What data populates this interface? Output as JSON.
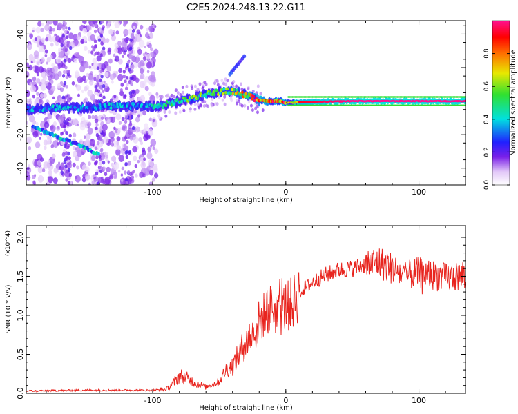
{
  "title": "C2E5.2024.248.13.22.G11",
  "chart_data": [
    {
      "type": "heatmap",
      "xlabel": "Height of straight line (km)",
      "ylabel": "Frequency (Hz)",
      "xlim": [
        -195,
        135
      ],
      "ylim": [
        -50,
        48
      ],
      "xticks": [
        -100,
        0,
        100
      ],
      "yticks": [
        -40,
        -20,
        0,
        20,
        40
      ],
      "colorbar": {
        "label": "Normalized spectral amplitude",
        "range": [
          0.0,
          1.0
        ],
        "ticks": [
          "0.0",
          "0.2",
          "0.4",
          "0.6",
          "0.8"
        ],
        "colormap": "white-purple-blue-cyan-green-yellow-red-magenta"
      },
      "features": {
        "main_trace": [
          {
            "x": -195,
            "y": -5,
            "amp": 0.35
          },
          {
            "x": -170,
            "y": -4,
            "amp": 0.4
          },
          {
            "x": -150,
            "y": -4,
            "amp": 0.35
          },
          {
            "x": -130,
            "y": -3,
            "amp": 0.4
          },
          {
            "x": -110,
            "y": -3,
            "amp": 0.35
          },
          {
            "x": -95,
            "y": -3,
            "amp": 0.45
          },
          {
            "x": -85,
            "y": -1,
            "amp": 0.5
          },
          {
            "x": -75,
            "y": 1,
            "amp": 0.55
          },
          {
            "x": -65,
            "y": 3,
            "amp": 0.6
          },
          {
            "x": -55,
            "y": 5,
            "amp": 0.6
          },
          {
            "x": -45,
            "y": 6,
            "amp": 0.65
          },
          {
            "x": -35,
            "y": 5,
            "amp": 0.75
          },
          {
            "x": -25,
            "y": 2,
            "amp": 0.85
          },
          {
            "x": -15,
            "y": 0,
            "amp": 0.9
          },
          {
            "x": -5,
            "y": 0,
            "amp": 0.95
          },
          {
            "x": 0,
            "y": -1,
            "amp": 0.9
          },
          {
            "x": 50,
            "y": 0,
            "amp": 1.0
          },
          {
            "x": 135,
            "y": 0,
            "amp": 1.0
          }
        ],
        "descending_branch": [
          {
            "x": -190,
            "y": -15
          },
          {
            "x": -170,
            "y": -22
          },
          {
            "x": -150,
            "y": -28
          },
          {
            "x": -140,
            "y": -32
          }
        ],
        "upper_spur": [
          {
            "x": -42,
            "y": 16
          },
          {
            "x": -30,
            "y": 28
          }
        ]
      }
    },
    {
      "type": "line",
      "xlabel": "Height of straight line (km)",
      "ylabel": "SNR (10 * v/v)",
      "y_multiplier": "(x10^4)",
      "xlim": [
        -195,
        135
      ],
      "ylim": [
        0,
        2.15
      ],
      "xticks": [
        -100,
        0,
        100
      ],
      "yticks": [
        0.0,
        0.5,
        1.0,
        1.5,
        2.0
      ],
      "color": "#e8241e",
      "series": [
        {
          "x": [
            -195,
            -150,
            -100,
            -90,
            -85,
            -80,
            -75,
            -70,
            -60,
            -50,
            -45,
            -40,
            -35,
            -30,
            -25,
            -20,
            -15,
            -10,
            -5,
            0,
            5,
            10,
            20,
            30,
            40,
            50,
            60,
            70,
            80,
            90,
            100,
            110,
            120,
            135
          ],
          "values": [
            0.03,
            0.04,
            0.04,
            0.05,
            0.12,
            0.22,
            0.2,
            0.15,
            0.08,
            0.15,
            0.3,
            0.35,
            0.5,
            0.68,
            0.75,
            0.9,
            1.05,
            1.1,
            1.0,
            1.12,
            1.15,
            1.3,
            1.42,
            1.52,
            1.58,
            1.6,
            1.65,
            1.68,
            1.6,
            1.5,
            1.55,
            1.52,
            1.48,
            1.5
          ]
        }
      ]
    }
  ]
}
